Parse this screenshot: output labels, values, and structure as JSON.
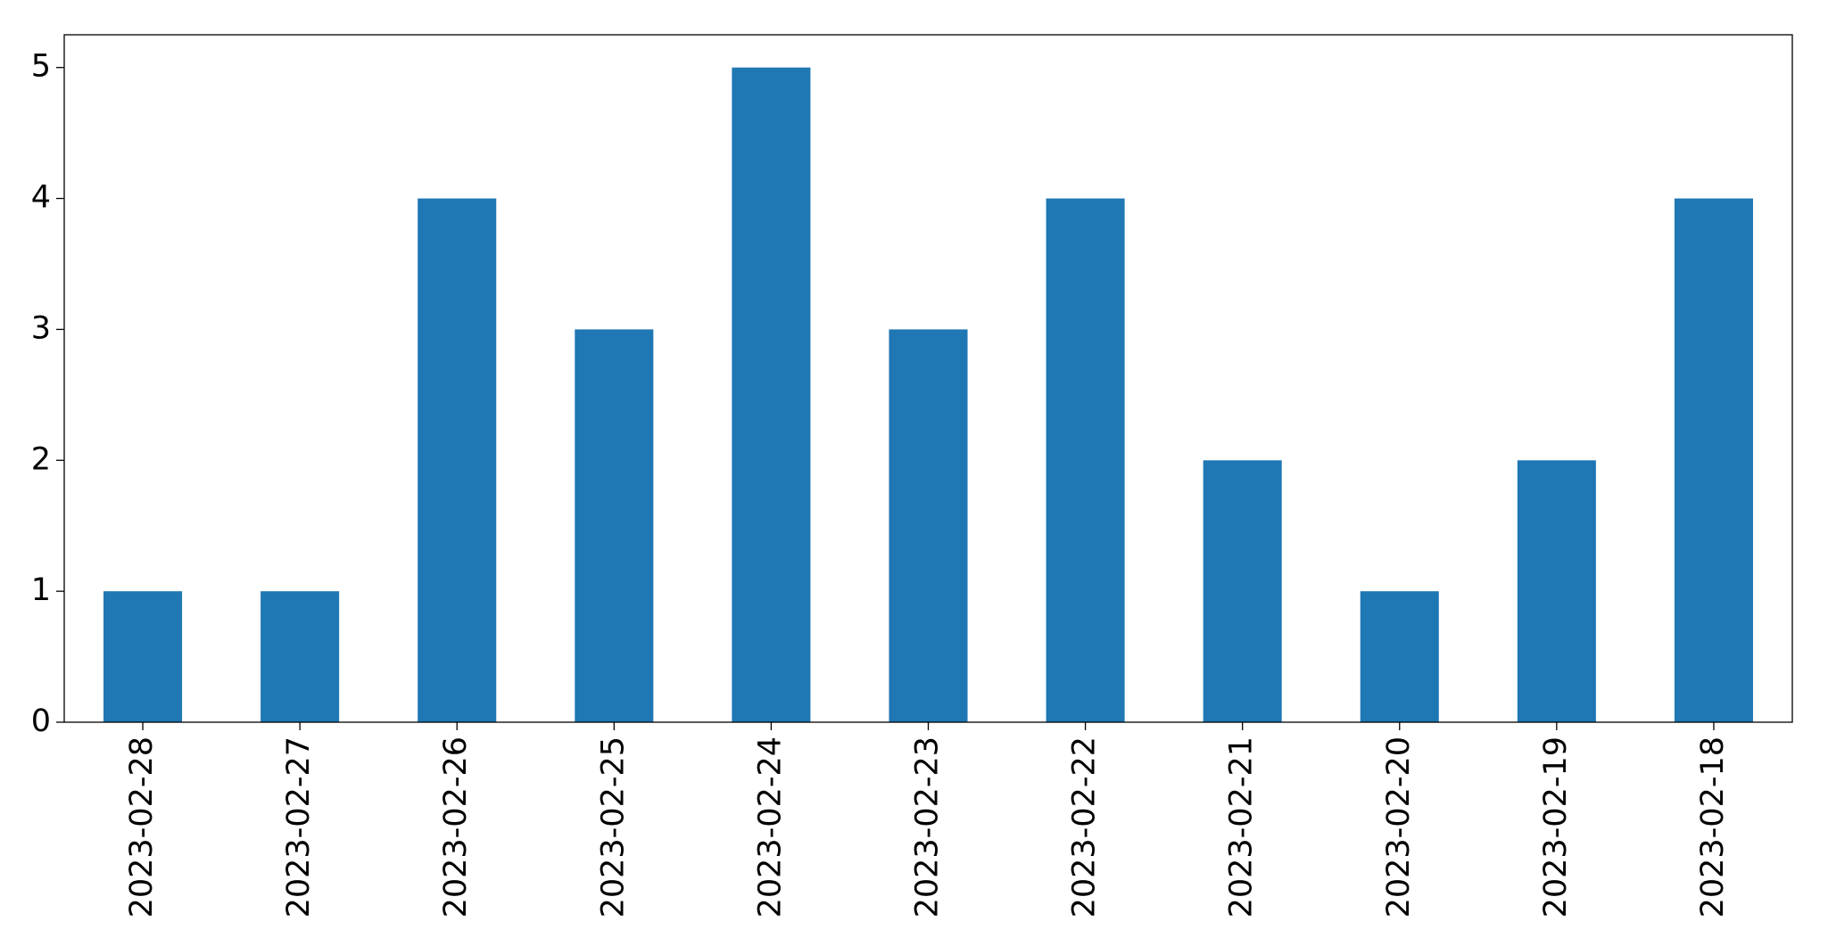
{
  "chart_data": {
    "type": "bar",
    "categories": [
      "2023-02-28",
      "2023-02-27",
      "2023-02-26",
      "2023-02-25",
      "2023-02-24",
      "2023-02-23",
      "2023-02-22",
      "2023-02-21",
      "2023-02-20",
      "2023-02-19",
      "2023-02-18"
    ],
    "values": [
      1,
      1,
      4,
      3,
      5,
      3,
      4,
      2,
      1,
      2,
      4
    ],
    "color": "#1f77b4",
    "ylim": [
      0,
      5.25
    ],
    "yticks": [
      0,
      1,
      2,
      3,
      4,
      5
    ],
    "grid": false
  }
}
